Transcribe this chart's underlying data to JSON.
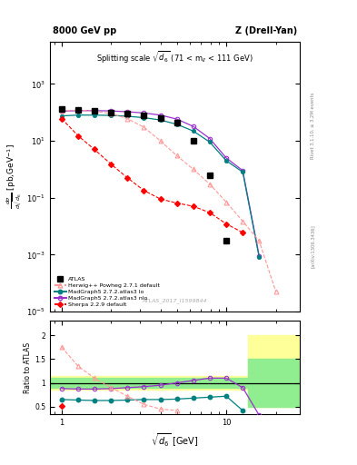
{
  "title_top_left": "8000 GeV pp",
  "title_top_right": "Z (Drell-Yan)",
  "main_title": "Splitting scale $\\sqrt{d_6}$ (71 < m$_{ll}$ < 111 GeV)",
  "watermark": "ATLAS_2017_I1599844",
  "right_label_top": "Rivet 3.1.10, ≥ 3.2M events",
  "right_label_bot": "[arXiv:1306.3436]",
  "ylabel_ratio": "Ratio to ATLAS",
  "xlabel": "sqrt{d_6} [GeV]",
  "x_bins": [
    1.0,
    1.26,
    1.58,
    2.0,
    2.51,
    3.16,
    3.98,
    5.01,
    6.31,
    7.94,
    10.0,
    12.59,
    15.85,
    20.0,
    25.12
  ],
  "y_atlas": [
    130.0,
    120.0,
    110.0,
    100.0,
    90.0,
    80.0,
    65.0,
    45.0,
    10.0,
    0.6,
    0.003,
    null,
    null,
    null,
    null
  ],
  "y_herwig": [
    110.0,
    120.0,
    110.0,
    90.0,
    60.0,
    30.0,
    10.0,
    3.0,
    1.0,
    0.3,
    0.07,
    0.015,
    0.003,
    5e-05,
    null
  ],
  "y_mg5lo": [
    75.0,
    80.0,
    80.0,
    78.0,
    73.0,
    65.0,
    54.0,
    38.0,
    22.0,
    9.0,
    2.0,
    0.8,
    0.0008,
    null,
    null
  ],
  "y_mg5nlo": [
    110.0,
    115.0,
    115.0,
    112.0,
    105.0,
    95.0,
    80.0,
    58.0,
    32.0,
    12.0,
    2.5,
    0.9,
    0.0009,
    null,
    null
  ],
  "y_sherpa": [
    60.0,
    15.0,
    5.0,
    1.5,
    0.5,
    0.18,
    0.09,
    0.065,
    0.05,
    0.03,
    0.012,
    0.006,
    null,
    null,
    null
  ],
  "color_atlas": "#000000",
  "color_herwig": "#ff9999",
  "color_mg5lo": "#008080",
  "color_mg5nlo": "#9932CC",
  "color_sherpa": "#ff0000",
  "ratio_x": [
    1.0,
    1.26,
    1.58,
    2.0,
    2.51,
    3.16,
    3.98,
    5.01,
    6.31,
    7.94,
    10.0,
    12.59,
    15.85,
    20.0,
    25.12
  ],
  "ratio_herwig": [
    1.75,
    1.35,
    1.1,
    0.9,
    0.72,
    0.55,
    0.45,
    0.42,
    null,
    null,
    null,
    null,
    null,
    null,
    null
  ],
  "ratio_mg5lo": [
    0.65,
    0.64,
    0.63,
    0.63,
    0.64,
    0.65,
    0.65,
    0.66,
    0.68,
    0.7,
    0.72,
    0.42,
    null,
    null,
    null
  ],
  "ratio_mg5nlo": [
    0.88,
    0.87,
    0.87,
    0.88,
    0.9,
    0.92,
    0.95,
    1.0,
    1.05,
    1.1,
    1.1,
    0.9,
    0.32,
    null,
    null
  ],
  "ratio_sherpa": [
    0.52,
    null,
    null,
    null,
    null,
    null,
    null,
    null,
    null,
    null,
    null,
    null,
    null,
    null,
    null
  ],
  "ylim_main": [
    1e-05,
    30000.0
  ],
  "ylim_ratio": [
    0.35,
    2.3
  ],
  "xlim": [
    0.85,
    28.0
  ],
  "band_x_start": 13.5,
  "band_x_end": 28.0,
  "band_yellow_lo": 0.5,
  "band_yellow_hi": 2.0,
  "band_green_lo": 0.5,
  "band_green_hi": 1.5,
  "narrow_yellow_lo": 0.85,
  "narrow_yellow_hi": 1.15,
  "narrow_green_lo": 0.9,
  "narrow_green_hi": 1.1
}
